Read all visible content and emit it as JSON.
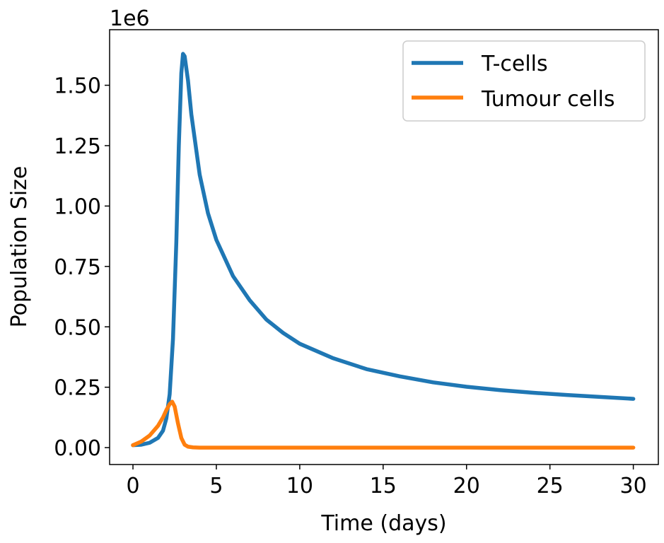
{
  "chart_data": {
    "type": "line",
    "xlabel": "Time (days)",
    "ylabel": "Population Size",
    "y_offset_label": "1e6",
    "xlim": [
      -1.4,
      31.5
    ],
    "ylim": [
      -0.07,
      1.73
    ],
    "x_ticks": [
      0,
      5,
      10,
      15,
      20,
      25,
      30
    ],
    "x_tick_labels": [
      "0",
      "5",
      "10",
      "15",
      "20",
      "25",
      "30"
    ],
    "y_ticks": [
      0.0,
      0.25,
      0.5,
      0.75,
      1.0,
      1.25,
      1.5
    ],
    "y_tick_labels": [
      "0.00",
      "0.25",
      "0.50",
      "0.75",
      "1.00",
      "1.25",
      "1.50"
    ],
    "grid": false,
    "legend_position": "top-right",
    "series": [
      {
        "name": "T-cells",
        "color": "#1f77b4",
        "points": [
          [
            0,
            0.01
          ],
          [
            0.5,
            0.012
          ],
          [
            1.0,
            0.02
          ],
          [
            1.5,
            0.04
          ],
          [
            1.8,
            0.07
          ],
          [
            2.0,
            0.12
          ],
          [
            2.2,
            0.22
          ],
          [
            2.4,
            0.45
          ],
          [
            2.6,
            0.85
          ],
          [
            2.75,
            1.25
          ],
          [
            2.9,
            1.55
          ],
          [
            3.0,
            1.63
          ],
          [
            3.1,
            1.62
          ],
          [
            3.3,
            1.52
          ],
          [
            3.5,
            1.38
          ],
          [
            4.0,
            1.13
          ],
          [
            4.5,
            0.97
          ],
          [
            5.0,
            0.86
          ],
          [
            6.0,
            0.71
          ],
          [
            7.0,
            0.61
          ],
          [
            8.0,
            0.53
          ],
          [
            9.0,
            0.475
          ],
          [
            10.0,
            0.43
          ],
          [
            12.0,
            0.37
          ],
          [
            14.0,
            0.325
          ],
          [
            16.0,
            0.295
          ],
          [
            18.0,
            0.27
          ],
          [
            20.0,
            0.252
          ],
          [
            22.0,
            0.238
          ],
          [
            24.0,
            0.227
          ],
          [
            26.0,
            0.218
          ],
          [
            28.0,
            0.21
          ],
          [
            30.0,
            0.202
          ]
        ]
      },
      {
        "name": "Tumour cells",
        "color": "#ff7f0e",
        "points": [
          [
            0,
            0.01
          ],
          [
            0.5,
            0.025
          ],
          [
            1.0,
            0.05
          ],
          [
            1.5,
            0.09
          ],
          [
            1.8,
            0.125
          ],
          [
            2.0,
            0.155
          ],
          [
            2.2,
            0.18
          ],
          [
            2.35,
            0.19
          ],
          [
            2.5,
            0.17
          ],
          [
            2.7,
            0.1
          ],
          [
            2.9,
            0.04
          ],
          [
            3.1,
            0.012
          ],
          [
            3.3,
            0.004
          ],
          [
            3.6,
            0.001
          ],
          [
            4.0,
            0.0
          ],
          [
            10.0,
            0.0
          ],
          [
            20.0,
            0.0
          ],
          [
            30.0,
            0.0
          ]
        ]
      }
    ]
  }
}
